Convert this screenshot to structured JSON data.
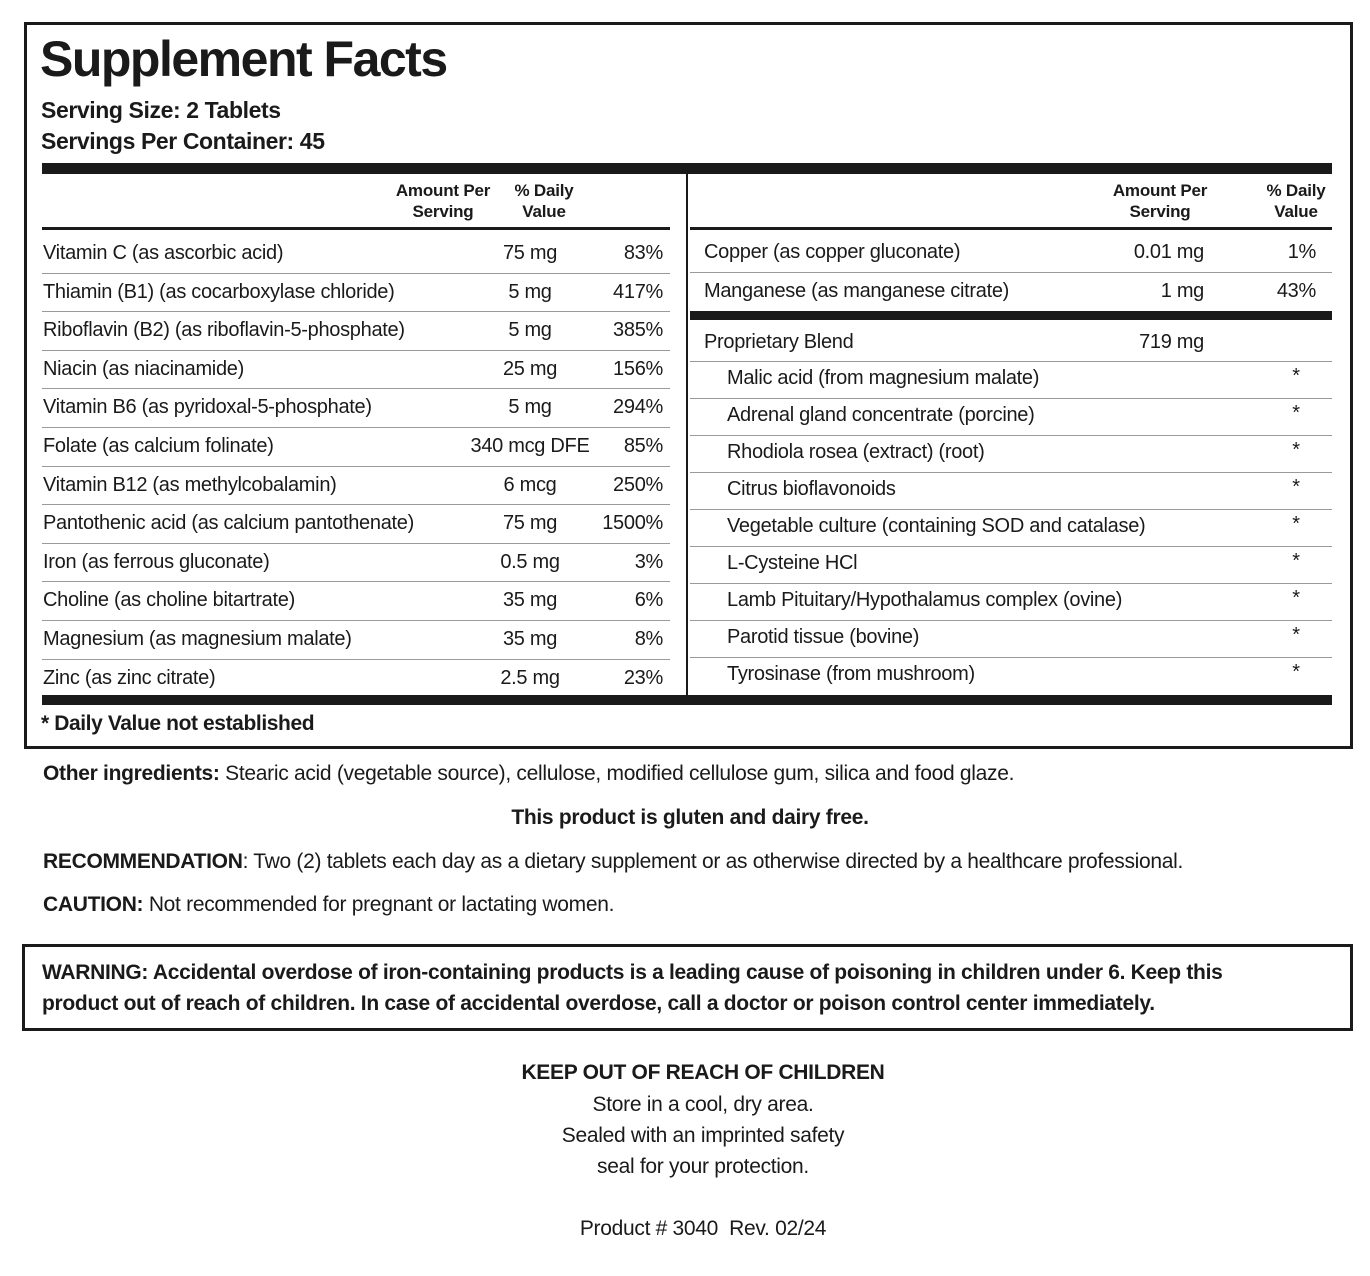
{
  "title": "Supplement Facts",
  "serving_size": "Serving Size: 2 Tablets",
  "servings_per_container": "Servings Per Container: 45",
  "left_table": {
    "headers": [
      "Amount Per Serving",
      "% Daily Value"
    ],
    "rows": [
      [
        "Vitamin C (as ascorbic acid)",
        "75 mg",
        "83%"
      ],
      [
        "Thiamin (B1) (as cocarboxylase chloride)",
        "5 mg",
        "417%"
      ],
      [
        "Riboflavin (B2) (as riboflavin-5-phosphate)",
        "5 mg",
        "385%"
      ],
      [
        "Niacin (as niacinamide)",
        "25 mg",
        "156%"
      ],
      [
        "Vitamin B6 (as pyridoxal-5-phosphate)",
        "5 mg",
        "294%"
      ],
      [
        "Folate (as calcium folinate)",
        "340 mcg DFE",
        "85%"
      ],
      [
        "Vitamin B12 (as methylcobalamin)",
        "6 mcg",
        "250%"
      ],
      [
        "Pantothenic acid (as calcium pantothenate)",
        "75 mg",
        "1500%"
      ],
      [
        "Iron (as ferrous gluconate)",
        "0.5 mg",
        "3%"
      ],
      [
        "Choline (as choline bitartrate)",
        "35 mg",
        "6%"
      ],
      [
        "Magnesium (as magnesium malate)",
        "35 mg",
        "8%"
      ],
      [
        "Zinc (as zinc citrate)",
        "2.5 mg",
        "23%"
      ]
    ]
  },
  "right_table": {
    "headers": [
      "Amount Per Serving",
      "% Daily Value"
    ],
    "rows": [
      [
        "Copper (as copper gluconate)",
        "0.01 mg",
        "1%"
      ],
      [
        "Manganese (as manganese citrate)",
        "1 mg",
        "43%"
      ]
    ],
    "blend": {
      "name": "Proprietary Blend",
      "amount": "719 mg",
      "items": [
        [
          "Malic acid (from magnesium malate)",
          "*"
        ],
        [
          "Adrenal gland concentrate (porcine)",
          "*"
        ],
        [
          "Rhodiola rosea (extract) (root)",
          "*"
        ],
        [
          "Citrus bioflavonoids",
          "*"
        ],
        [
          "Vegetable culture (containing SOD and catalase)",
          "*"
        ],
        [
          "L-Cysteine HCl",
          "*"
        ],
        [
          "Lamb Pituitary/Hypothalamus complex (ovine)",
          "*"
        ],
        [
          "Parotid tissue (bovine)",
          "*"
        ],
        [
          "Tyrosinase (from mushroom)",
          "*"
        ]
      ]
    }
  },
  "footnote": "* Daily Value not established",
  "other_ingredients": {
    "label": "Other ingredients:",
    "text": "Stearic acid (vegetable source), cellulose, modified cellulose gum, silica and food glaze."
  },
  "gluten_free": "This product is gluten and dairy free.",
  "recommendation": {
    "label": "RECOMMENDATION",
    "text": ": Two (2) tablets each day as a dietary supplement or as otherwise directed by a healthcare professional."
  },
  "caution": {
    "label": "CAUTION:",
    "text": "Not recommended for pregnant or lactating women."
  },
  "warning": "WARNING: Accidental overdose of iron-containing products is a leading cause of poisoning in children under 6. Keep this product out of reach of children. In case of accidental overdose, call a doctor or poison control center immediately.",
  "keep_out": "KEEP OUT OF REACH OF CHILDREN",
  "storage": [
    "Store in a cool, dry area.",
    "Sealed with an imprinted safety",
    "seal for your protection."
  ],
  "product": "Product # 3040  Rev. 02/24"
}
